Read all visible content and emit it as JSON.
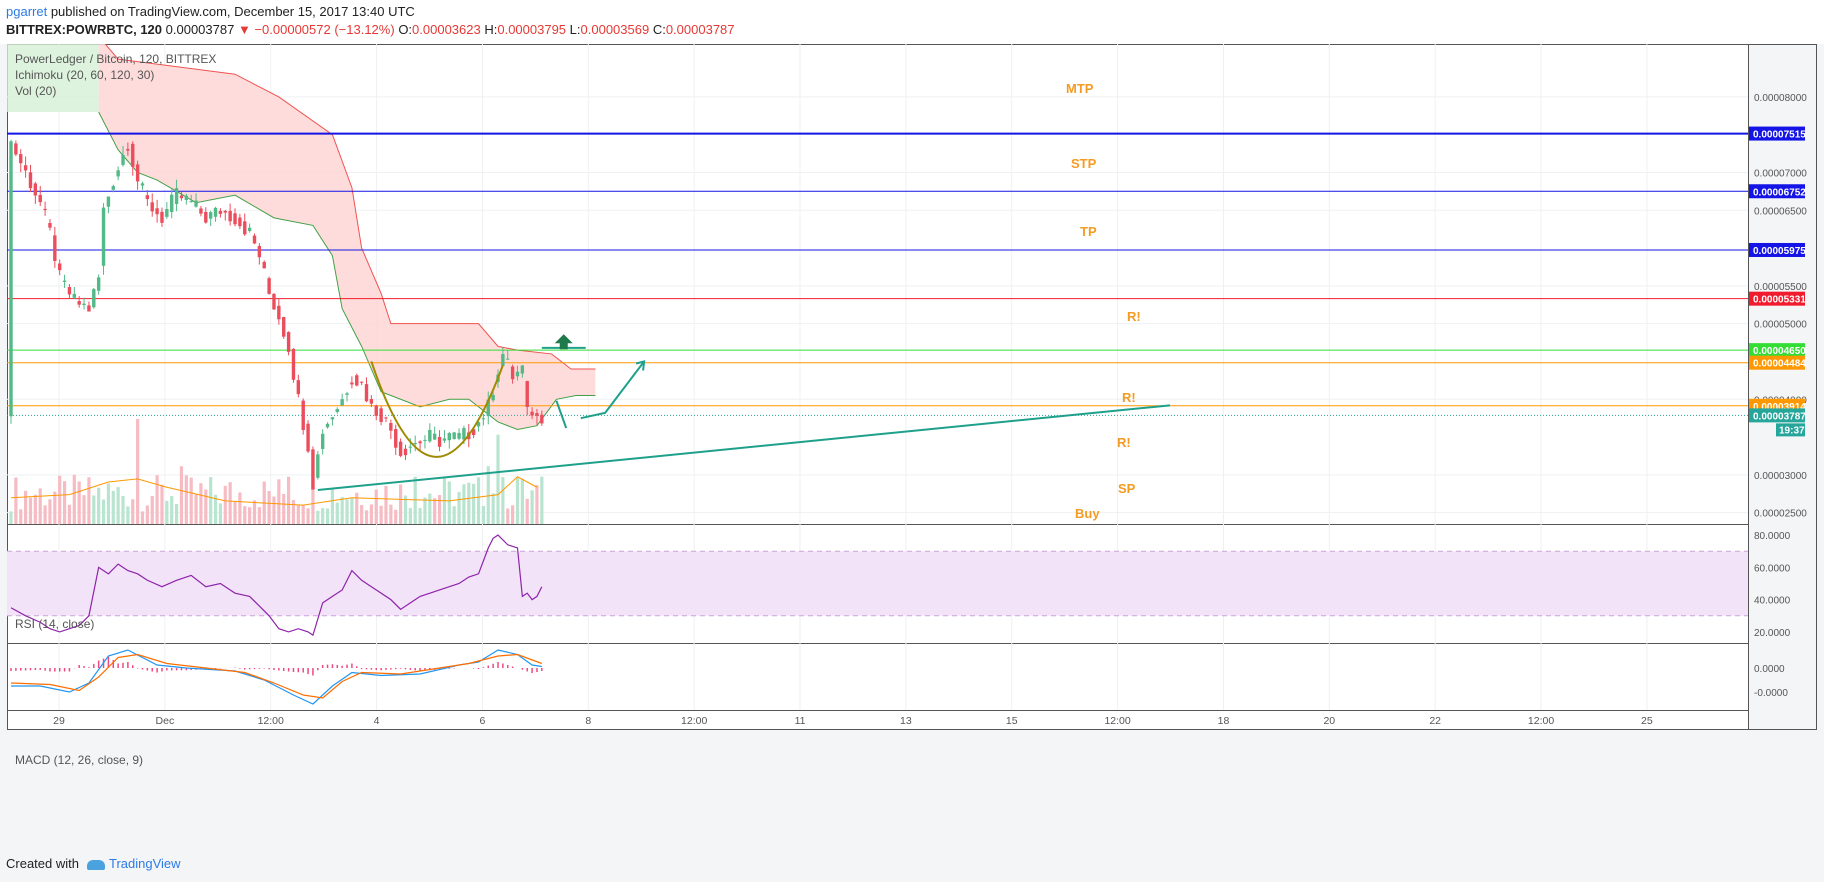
{
  "header": {
    "author": "pgarret",
    "published_text": " published on TradingView.com, December 15, 2017 13:40 UTC",
    "symbol": "BITTREX:POWRBTC, 120",
    "last": "0.00003787",
    "change": "−0.00000572 (−13.12%)",
    "o_label": "O:",
    "o": "0.00003623",
    "h_label": "H:",
    "h": "0.00003795",
    "l_label": "L:",
    "l": "0.00003569",
    "c_label": "C:",
    "c": "0.00003787"
  },
  "legend": {
    "main": "PowerLedger / Bitcoin, 120, BITTREX",
    "ichimoku": "Ichimoku (20, 60, 120, 30)",
    "vol": "Vol (20)",
    "rsi": "RSI (14, close)",
    "macd": "MACD (12, 26, close, 9)"
  },
  "annotations": {
    "mtp": "MTP",
    "stp": "STP",
    "tp": "TP",
    "r1": "R!",
    "r2": "R!",
    "r3": "R!",
    "sp": "SP",
    "buy": "Buy"
  },
  "footer": {
    "created": "Created with",
    "brand": "TradingView"
  },
  "colors": {
    "up": "#53b987",
    "down": "#eb4d5c",
    "blue_line": "#1414e6",
    "red_line": "#f21b2d",
    "green_line": "#33dd33",
    "orange_line": "#ff9800",
    "annotation": "#f59b23",
    "trend": "#1ea08a",
    "cup": "#a08a00",
    "cloud": "#ffd6d6",
    "rsi_band": "#f3e3f9",
    "rsi_line": "#8e24aa"
  },
  "chart_data": {
    "type": "candlestick",
    "symbol": "BITTREX:POWRBTC",
    "interval": "120",
    "price_axis": {
      "ticks": [
        "0.00008000",
        "0.00007000",
        "0.00006500",
        "0.00005500",
        "0.00005000",
        "0.00004000",
        "0.00003000",
        "0.00002500"
      ],
      "range": [
        2.35e-05,
        8.7e-05
      ]
    },
    "x_axis": {
      "ticks": [
        "29",
        "Dec",
        "12:00",
        "4",
        "6",
        "8",
        "12:00",
        "11",
        "13",
        "15",
        "12:00",
        "18",
        "20",
        "22",
        "12:00",
        "25"
      ]
    },
    "horizontal_levels": [
      {
        "price": 7.515e-05,
        "label": "0.00007515",
        "color": "#1414e6",
        "width": 2
      },
      {
        "price": 6.752e-05,
        "label": "0.00006752",
        "color": "#1414e6",
        "width": 1
      },
      {
        "price": 5.975e-05,
        "label": "0.00005975",
        "color": "#1414e6",
        "width": 1
      },
      {
        "price": 5.331e-05,
        "label": "0.00005331",
        "color": "#f21b2d",
        "width": 1
      },
      {
        "price": 4.65e-05,
        "label": "0.00004650",
        "color": "#33dd33",
        "width": 1
      },
      {
        "price": 4.484e-05,
        "label": "0.00004484",
        "color": "#ff9800",
        "width": 1
      },
      {
        "price": 3.914e-05,
        "label": "0.00003914",
        "color": "#ff9800",
        "width": 1
      }
    ],
    "last_price": {
      "price": 3.787e-05,
      "label": "0.00003787",
      "countdown": "19:37"
    },
    "price_path": [
      [
        0,
        7.4e-05
      ],
      [
        3,
        7e-05
      ],
      [
        6,
        6.6e-05
      ],
      [
        8,
        6.2e-05
      ],
      [
        10,
        5.6e-05
      ],
      [
        13,
        5.3e-05
      ],
      [
        16,
        5.2e-05
      ],
      [
        18,
        5.6e-05
      ],
      [
        19,
        6.5e-05
      ],
      [
        21,
        6.9e-05
      ],
      [
        24,
        7.4e-05
      ],
      [
        26,
        6.9e-05
      ],
      [
        28,
        6.6e-05
      ],
      [
        31,
        6.4e-05
      ],
      [
        34,
        6.7e-05
      ],
      [
        37,
        6.6e-05
      ],
      [
        40,
        6.4e-05
      ],
      [
        43,
        6.5e-05
      ],
      [
        46,
        6.4e-05
      ],
      [
        49,
        6.2e-05
      ],
      [
        51,
        5.9e-05
      ],
      [
        53,
        5.4e-05
      ],
      [
        55,
        5.1e-05
      ],
      [
        57,
        4.7e-05
      ],
      [
        59,
        4e-05
      ],
      [
        61,
        3.4e-05
      ],
      [
        62,
        2.9e-05
      ],
      [
        64,
        3.6e-05
      ],
      [
        66,
        3.8e-05
      ],
      [
        68,
        4e-05
      ],
      [
        70,
        4.3e-05
      ],
      [
        72,
        4.2e-05
      ],
      [
        74,
        3.9e-05
      ],
      [
        76,
        3.8e-05
      ],
      [
        78,
        3.6e-05
      ],
      [
        80,
        3.3e-05
      ],
      [
        82,
        3.4e-05
      ],
      [
        84,
        3.45e-05
      ],
      [
        86,
        3.5e-05
      ],
      [
        88,
        3.45e-05
      ],
      [
        90,
        3.5e-05
      ],
      [
        92,
        3.5e-05
      ],
      [
        94,
        3.55e-05
      ],
      [
        96,
        3.7e-05
      ],
      [
        98,
        3.9e-05
      ],
      [
        100,
        4.4e-05
      ],
      [
        101,
        4.6e-05
      ],
      [
        103,
        4.3e-05
      ],
      [
        105,
        4.4e-05
      ],
      [
        106,
        3.8e-05
      ],
      [
        107,
        3.85e-05
      ],
      [
        108,
        3.75e-05
      ],
      [
        109,
        3.78e-05
      ]
    ],
    "ichimoku_cloud": {
      "upper": [
        [
          18,
          8.8e-05
        ],
        [
          22,
          8.5e-05
        ],
        [
          46,
          8.3e-05
        ],
        [
          55,
          8e-05
        ],
        [
          66,
          7.5e-05
        ],
        [
          70,
          6.8e-05
        ],
        [
          72,
          6e-05
        ],
        [
          76,
          5.4e-05
        ],
        [
          78,
          5e-05
        ],
        [
          96,
          5e-05
        ],
        [
          100,
          4.7e-05
        ],
        [
          104,
          4.65e-05
        ],
        [
          111,
          4.6e-05
        ],
        [
          115,
          4.4e-05
        ],
        [
          120,
          4.4e-05
        ]
      ],
      "lower": [
        [
          18,
          7.8e-05
        ],
        [
          22,
          7.3e-05
        ],
        [
          26,
          7e-05
        ],
        [
          30,
          6.9e-05
        ],
        [
          38,
          6.6e-05
        ],
        [
          46,
          6.7e-05
        ],
        [
          54,
          6.4e-05
        ],
        [
          62,
          6.3e-05
        ],
        [
          66,
          5.9e-05
        ],
        [
          68,
          5.2e-05
        ],
        [
          72,
          4.7e-05
        ],
        [
          76,
          4.1e-05
        ],
        [
          80,
          4e-05
        ],
        [
          84,
          3.9e-05
        ],
        [
          90,
          4e-05
        ],
        [
          94,
          4e-05
        ],
        [
          100,
          3.7e-05
        ],
        [
          104,
          3.6e-05
        ],
        [
          108,
          3.65e-05
        ],
        [
          112,
          4e-05
        ],
        [
          116,
          4.05e-05
        ],
        [
          120,
          4.05e-05
        ]
      ]
    },
    "volume_ma": [
      [
        0,
        0.25
      ],
      [
        12,
        0.28
      ],
      [
        20,
        0.4
      ],
      [
        26,
        0.43
      ],
      [
        32,
        0.35
      ],
      [
        44,
        0.22
      ],
      [
        60,
        0.18
      ],
      [
        70,
        0.25
      ],
      [
        90,
        0.22
      ],
      [
        100,
        0.28
      ],
      [
        104,
        0.45
      ],
      [
        108,
        0.35
      ]
    ],
    "rsi": {
      "range": [
        15,
        85
      ],
      "ticks": [
        "80.0000",
        "60.0000",
        "40.0000",
        "20.0000"
      ],
      "band": [
        30,
        70
      ],
      "values": [
        [
          0,
          35
        ],
        [
          3,
          30
        ],
        [
          6,
          26
        ],
        [
          8,
          22
        ],
        [
          10,
          20
        ],
        [
          12,
          22
        ],
        [
          14,
          24
        ],
        [
          16,
          30
        ],
        [
          18,
          60
        ],
        [
          20,
          56
        ],
        [
          22,
          62
        ],
        [
          24,
          58
        ],
        [
          26,
          56
        ],
        [
          28,
          52
        ],
        [
          31,
          48
        ],
        [
          34,
          52
        ],
        [
          37,
          55
        ],
        [
          40,
          48
        ],
        [
          43,
          50
        ],
        [
          46,
          44
        ],
        [
          49,
          42
        ],
        [
          51,
          36
        ],
        [
          53,
          30
        ],
        [
          55,
          22
        ],
        [
          57,
          20
        ],
        [
          59,
          22
        ],
        [
          61,
          20
        ],
        [
          62,
          18
        ],
        [
          64,
          38
        ],
        [
          66,
          42
        ],
        [
          68,
          46
        ],
        [
          70,
          58
        ],
        [
          72,
          52
        ],
        [
          74,
          48
        ],
        [
          76,
          44
        ],
        [
          78,
          40
        ],
        [
          80,
          34
        ],
        [
          82,
          38
        ],
        [
          84,
          42
        ],
        [
          86,
          44
        ],
        [
          88,
          46
        ],
        [
          90,
          48
        ],
        [
          92,
          50
        ],
        [
          94,
          54
        ],
        [
          96,
          56
        ],
        [
          98,
          72
        ],
        [
          99,
          78
        ],
        [
          100,
          80
        ],
        [
          102,
          74
        ],
        [
          104,
          72
        ],
        [
          105,
          42
        ],
        [
          106,
          44
        ],
        [
          107,
          40
        ],
        [
          108,
          42
        ],
        [
          109,
          48
        ]
      ]
    },
    "macd": {
      "range": [
        -2.8e-06,
        1.6e-06
      ],
      "ticks": [
        "0.0000",
        "-0.0000"
      ],
      "macd_line": [
        [
          0,
          -1.2e-06
        ],
        [
          6,
          -1.2e-06
        ],
        [
          12,
          -1.6e-06
        ],
        [
          16,
          -1e-06
        ],
        [
          20,
          8e-07
        ],
        [
          24,
          1.2e-06
        ],
        [
          30,
          2e-07
        ],
        [
          36,
          0.0
        ],
        [
          46,
          -2e-07
        ],
        [
          52,
          -8e-07
        ],
        [
          58,
          -1.8e-06
        ],
        [
          62,
          -2.4e-06
        ],
        [
          66,
          -1.2e-06
        ],
        [
          70,
          -3e-07
        ],
        [
          76,
          -5e-07
        ],
        [
          84,
          -4e-07
        ],
        [
          92,
          2e-07
        ],
        [
          96,
          4e-07
        ],
        [
          100,
          1.2e-06
        ],
        [
          104,
          9e-07
        ],
        [
          107,
          2e-07
        ],
        [
          109,
          1e-07
        ]
      ],
      "signal_line": [
        [
          0,
          -1e-06
        ],
        [
          8,
          -1.1e-06
        ],
        [
          14,
          -1.5e-06
        ],
        [
          18,
          -6e-07
        ],
        [
          22,
          7e-07
        ],
        [
          26,
          9e-07
        ],
        [
          32,
          3e-07
        ],
        [
          40,
          0.0
        ],
        [
          48,
          -3e-07
        ],
        [
          54,
          -1e-06
        ],
        [
          60,
          -1.8e-06
        ],
        [
          64,
          -2e-06
        ],
        [
          68,
          -9e-07
        ],
        [
          72,
          -3e-07
        ],
        [
          80,
          -4e-07
        ],
        [
          88,
          0.0
        ],
        [
          94,
          3e-07
        ],
        [
          100,
          8e-07
        ],
        [
          104,
          9e-07
        ],
        [
          109,
          3e-07
        ]
      ]
    }
  }
}
